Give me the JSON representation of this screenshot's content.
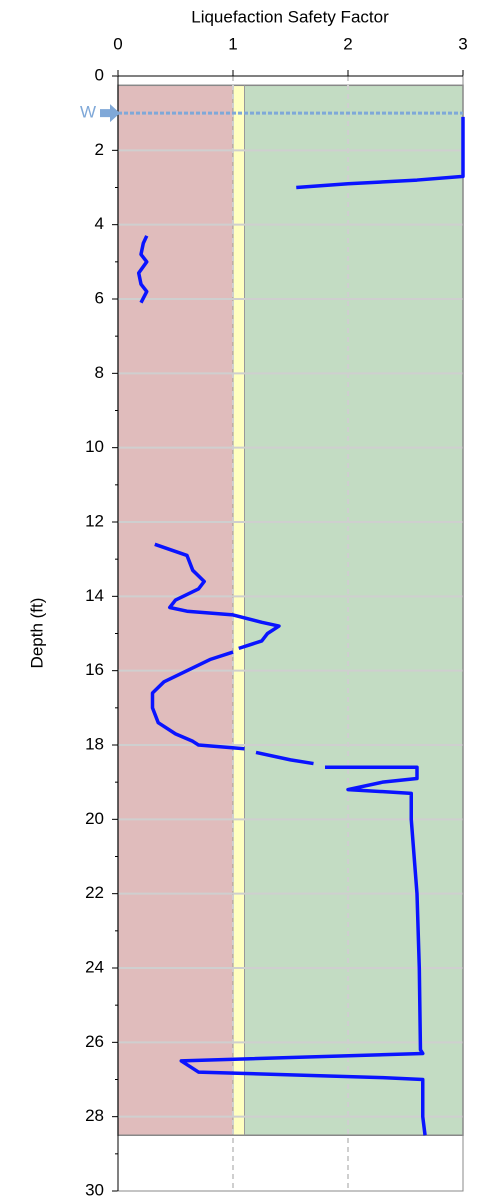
{
  "chart_data": {
    "type": "line",
    "title": "Liquefaction Safety Factor",
    "y_label": "Depth (ft)",
    "xlim": [
      0,
      3
    ],
    "xticks": [
      0,
      1,
      2,
      3
    ],
    "ylim": [
      0,
      30
    ],
    "yticks": [
      0,
      2,
      4,
      6,
      8,
      10,
      12,
      14,
      16,
      18,
      20,
      22,
      24,
      26,
      28,
      30
    ],
    "y_inverted": true,
    "grid": true,
    "zones": [
      {
        "from": 0,
        "to": 1,
        "color": "#e0bcbc"
      },
      {
        "from": 1,
        "to": 1.1,
        "color": "#ffffc0"
      },
      {
        "from": 1.1,
        "to": 3,
        "color": "#c3dcc3"
      }
    ],
    "zone_depth": [
      0.25,
      28.5
    ],
    "water_table": {
      "label": "W",
      "depth": 1,
      "color": "#7fa8d8"
    },
    "line_color": "#0a14ff",
    "values": [
      3.0,
      3.0,
      2.6,
      2.0,
      1.55,
      null,
      0.25,
      0.22,
      0.2,
      0.25,
      0.18,
      0.2,
      0.25,
      0.2,
      null,
      0.32,
      0.6,
      0.65,
      0.75,
      0.7,
      0.5,
      0.45,
      0.6,
      1.0,
      1.25,
      1.4,
      1.3,
      1.25,
      1.15,
      1.05,
      null,
      1.0,
      0.8,
      0.6,
      0.4,
      0.3,
      0.3,
      0.35,
      0.5,
      0.65,
      0.7,
      1.1,
      null,
      1.2,
      1.5,
      1.7,
      null,
      1.8,
      2.6,
      2.6,
      2.3,
      2.0,
      2.55,
      2.55,
      2.6,
      2.62,
      2.63,
      2.65,
      0.55,
      0.7,
      2.3,
      2.65,
      2.65,
      2.67
    ],
    "depth": [
      1.1,
      2.7,
      2.8,
      2.9,
      3.0,
      null,
      4.3,
      4.5,
      4.8,
      5.0,
      5.3,
      5.6,
      5.8,
      6.1,
      null,
      12.6,
      12.9,
      13.3,
      13.6,
      13.8,
      14.1,
      14.3,
      14.4,
      14.5,
      14.7,
      14.8,
      15.0,
      15.2,
      15.3,
      15.4,
      null,
      15.5,
      15.7,
      16.0,
      16.3,
      16.6,
      17.0,
      17.4,
      17.7,
      17.9,
      18.0,
      18.1,
      null,
      18.2,
      18.4,
      18.5,
      null,
      18.6,
      18.6,
      18.9,
      19.0,
      19.2,
      19.3,
      20.0,
      22.0,
      24.0,
      26.2,
      26.3,
      26.5,
      26.8,
      26.95,
      27.0,
      28.0,
      28.5
    ]
  }
}
